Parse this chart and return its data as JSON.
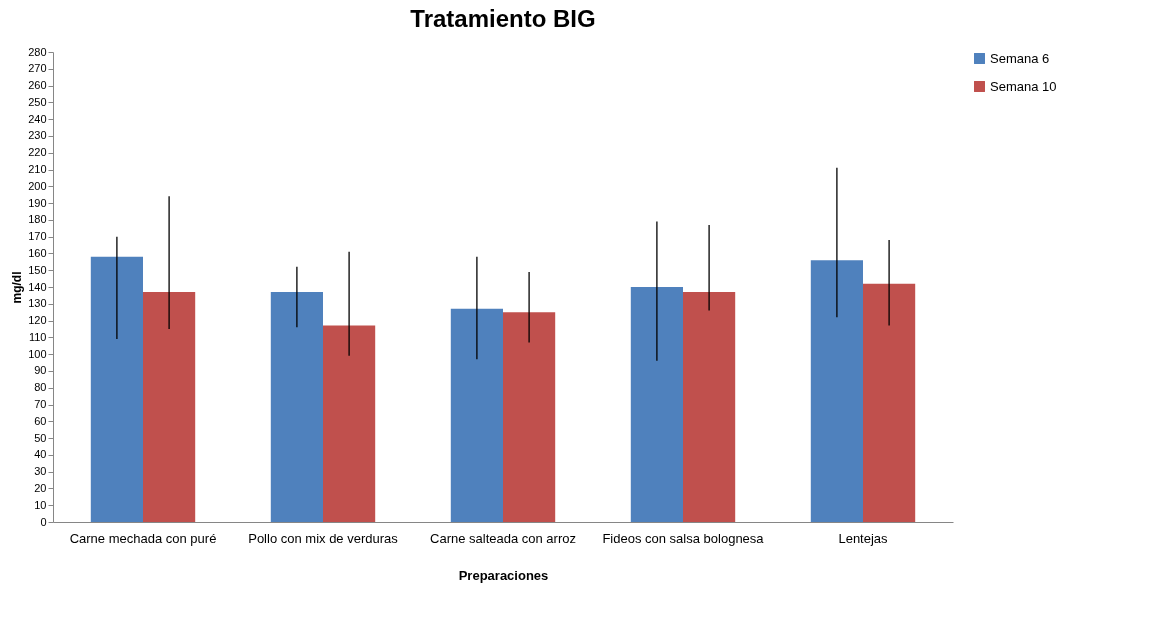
{
  "chart_data": {
    "type": "bar",
    "title": "Tratamiento BIG",
    "xlabel": "Preparaciones",
    "ylabel": "mg/dl",
    "categories": [
      "Carne mechada con puré",
      "Pollo con mix de verduras",
      "Carne salteada con arroz",
      "Fideos con salsa bolognesa",
      "Lentejas"
    ],
    "series": [
      {
        "name": "Semana 6",
        "color": "#4f81bd",
        "values": [
          158,
          137,
          127,
          140,
          156
        ],
        "errors": [
          [
            109,
            170
          ],
          [
            116,
            152
          ],
          [
            97,
            158
          ],
          [
            96,
            179
          ],
          [
            122,
            211
          ]
        ]
      },
      {
        "name": "Semana 10",
        "color": "#c0504d",
        "values": [
          137,
          117,
          125,
          137,
          142
        ],
        "errors": [
          [
            115,
            194
          ],
          [
            99,
            161
          ],
          [
            107,
            149
          ],
          [
            126,
            177
          ],
          [
            117,
            168
          ]
        ]
      }
    ],
    "ylim": [
      0,
      280
    ],
    "yticks": [
      0,
      10,
      20,
      30,
      40,
      50,
      60,
      70,
      80,
      90,
      100,
      110,
      120,
      130,
      140,
      150,
      160,
      170,
      180,
      190,
      200,
      210,
      220,
      230,
      240,
      250,
      260,
      270,
      280
    ],
    "grid": false,
    "legend": "right"
  }
}
